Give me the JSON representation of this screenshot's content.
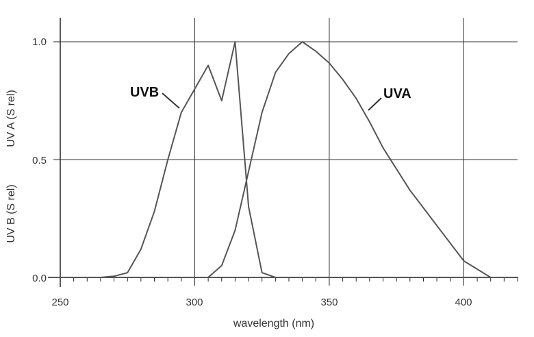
{
  "chart_data": {
    "type": "line",
    "title": "",
    "xlabel": "wavelength (nm)",
    "ylabel_lines": [
      "UV B (S rel)",
      "UV A (S rel)"
    ],
    "xlim": [
      250,
      420
    ],
    "ylim": [
      0,
      1.0
    ],
    "x_ticks": [
      250,
      300,
      350,
      400
    ],
    "y_ticks": [
      "0.0",
      "0.5",
      "1.0"
    ],
    "grid": true,
    "series": [
      {
        "name": "UVB",
        "color": "#555555",
        "x": [
          250,
          265,
          270,
          275,
          280,
          285,
          290,
          295,
          300,
          305,
          310,
          315,
          320,
          325,
          330,
          340,
          420
        ],
        "y": [
          0,
          0,
          0.005,
          0.02,
          0.12,
          0.28,
          0.5,
          0.7,
          0.8,
          0.9,
          0.75,
          1.0,
          0.3,
          0.02,
          0,
          0,
          0
        ]
      },
      {
        "name": "UVA",
        "color": "#555555",
        "x": [
          250,
          305,
          310,
          315,
          320,
          325,
          330,
          335,
          340,
          345,
          350,
          355,
          360,
          365,
          370,
          380,
          390,
          400,
          410,
          420
        ],
        "y": [
          0,
          0,
          0.05,
          0.2,
          0.45,
          0.7,
          0.87,
          0.95,
          1.0,
          0.96,
          0.91,
          0.84,
          0.76,
          0.66,
          0.55,
          0.37,
          0.22,
          0.07,
          0,
          0
        ]
      }
    ]
  }
}
